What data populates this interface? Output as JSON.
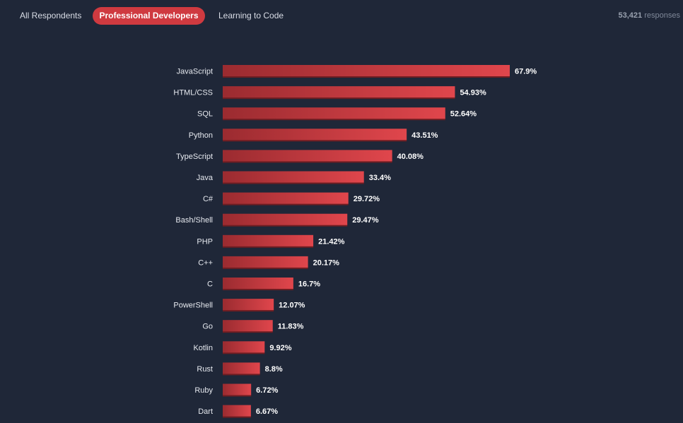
{
  "tabs": [
    {
      "label": "All Respondents",
      "active": false
    },
    {
      "label": "Professional Developers",
      "active": true
    },
    {
      "label": "Learning to Code",
      "active": false
    }
  ],
  "responses": {
    "count": "53,421",
    "suffix": "responses"
  },
  "colors": {
    "background": "#1f2738",
    "active_tab": "#cf3a40",
    "bar_start": "#9b2b30",
    "bar_end": "#e0464c",
    "bar_shadow": "#6e1d22"
  },
  "chart_data": {
    "type": "bar",
    "orientation": "horizontal",
    "categories": [
      "JavaScript",
      "HTML/CSS",
      "SQL",
      "Python",
      "TypeScript",
      "Java",
      "C#",
      "Bash/Shell",
      "PHP",
      "C++",
      "C",
      "PowerShell",
      "Go",
      "Kotlin",
      "Rust",
      "Ruby",
      "Dart"
    ],
    "values": [
      67.9,
      54.93,
      52.64,
      43.51,
      40.08,
      33.4,
      29.72,
      29.47,
      21.42,
      20.17,
      16.7,
      12.07,
      11.83,
      9.92,
      8.8,
      6.72,
      6.67
    ],
    "value_labels": [
      "67.9%",
      "54.93%",
      "52.64%",
      "43.51%",
      "40.08%",
      "33.4%",
      "29.72%",
      "29.47%",
      "21.42%",
      "20.17%",
      "16.7%",
      "12.07%",
      "11.83%",
      "9.92%",
      "8.8%",
      "6.72%",
      "6.67%"
    ],
    "unit": "%",
    "xlim": [
      0,
      67.9
    ],
    "grid": false,
    "title": "",
    "xlabel": "",
    "ylabel": ""
  }
}
